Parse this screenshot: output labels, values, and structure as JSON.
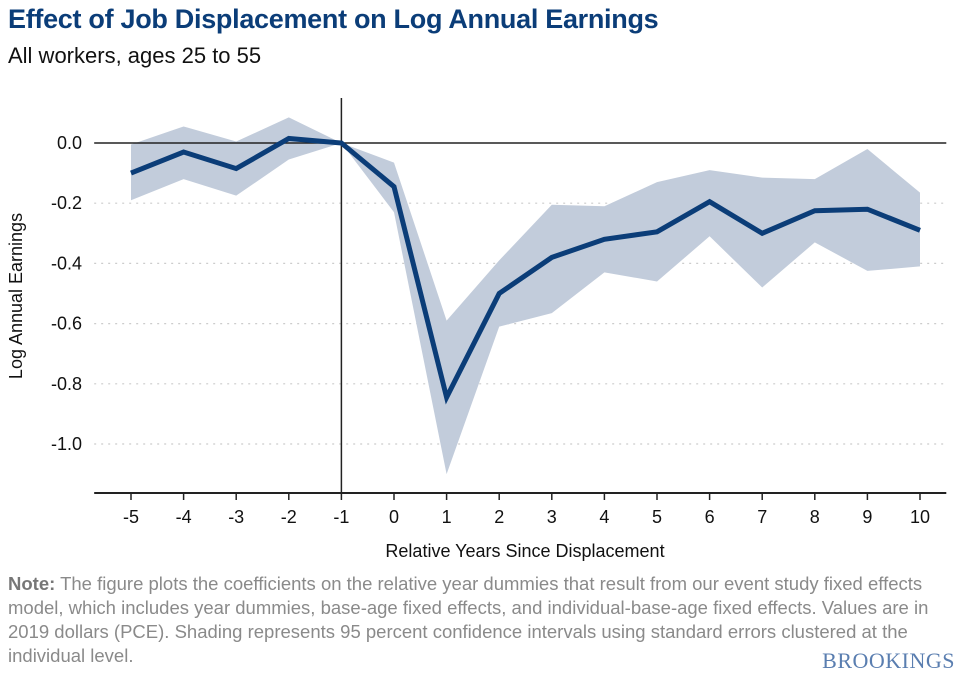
{
  "chart_data": {
    "type": "line",
    "title": "Effect of Job Displacement on Log Annual Earnings",
    "subtitle": "All workers, ages 25 to 55",
    "xlabel": "Relative Years Since Displacement",
    "ylabel": "Log Annual Earnings",
    "x": [
      -5,
      -4,
      -3,
      -2,
      -1,
      0,
      1,
      2,
      3,
      4,
      5,
      6,
      7,
      8,
      9,
      10
    ],
    "series": [
      {
        "values": [
          -0.1,
          -0.03,
          -0.085,
          0.015,
          0,
          -0.145,
          -0.845,
          -0.5,
          -0.38,
          -0.32,
          -0.295,
          -0.195,
          -0.3,
          -0.225,
          -0.22,
          -0.29
        ],
        "ci_upper": [
          -0.005,
          0.055,
          0.005,
          0.085,
          0,
          -0.065,
          -0.59,
          -0.39,
          -0.205,
          -0.21,
          -0.13,
          -0.09,
          -0.115,
          -0.12,
          -0.02,
          -0.165
        ],
        "ci_lower": [
          -0.19,
          -0.12,
          -0.175,
          -0.055,
          0,
          -0.23,
          -1.1,
          -0.61,
          -0.565,
          -0.43,
          -0.46,
          -0.31,
          -0.48,
          -0.33,
          -0.425,
          -0.41
        ]
      }
    ],
    "yticks": [
      "0.0",
      "-0.2",
      "-0.4",
      "-0.6",
      "-0.8",
      "-1.0"
    ],
    "ytick_values": [
      0,
      -0.2,
      -0.4,
      -0.6,
      -0.8,
      -1.0
    ],
    "xticks": [
      "-5",
      "-4",
      "-3",
      "-2",
      "-1",
      "0",
      "1",
      "2",
      "3",
      "4",
      "5",
      "6",
      "7",
      "8",
      "9",
      "10"
    ],
    "ylim": [
      -1.17,
      0.15
    ],
    "xlim": [
      -5.7,
      10.5
    ],
    "grid": "horizontal dotted",
    "line_color": "#0b3d78",
    "band_color": "#c2ccdb"
  },
  "note": {
    "label": "Note:",
    "text": " The figure plots the coefficients on the relative year dummies that result from our event study fixed effects model, which includes year dummies, base-age fixed effects, and individual-base-age fixed effects. Values are in 2019 dollars (PCE). Shading represents 95 percent confidence intervals using standard errors clustered at the individual level."
  },
  "logo": "BROOKINGS"
}
